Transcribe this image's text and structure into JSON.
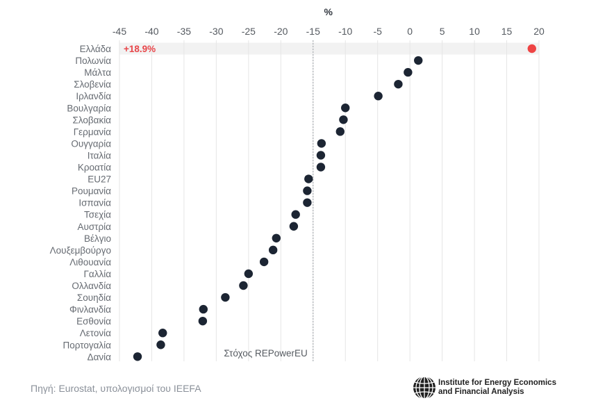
{
  "chart_data": {
    "type": "scatter",
    "unit_label": "%",
    "xlim": [
      -45,
      20
    ],
    "xticks": [
      -45,
      -40,
      -35,
      -30,
      -25,
      -20,
      -15,
      -10,
      -5,
      0,
      5,
      10,
      15,
      20
    ],
    "target": {
      "value": -15,
      "label": "Στόχος REPowerEU"
    },
    "highlight": {
      "category": "Ελλάδα",
      "label": "+18.9%",
      "color": "#ee4444"
    },
    "point_color": "#1c2533",
    "categories": [
      "Ελλάδα",
      "Πολωνία",
      "Μάλτα",
      "Σλοβενία",
      "Ιρλανδία",
      "Βουλγαρία",
      "Σλοβακία",
      "Γερμανία",
      "Ουγγαρία",
      "Ιταλία",
      "Κροατία",
      "EU27",
      "Ρουμανία",
      "Ισπανία",
      "Τσεχία",
      "Αυστρία",
      "Βέλγιο",
      "Λουξεμβούργο",
      "Λιθουανία",
      "Γαλλία",
      "Ολλανδία",
      "Σουηδία",
      "Φινλανδία",
      "Εσθονία",
      "Λετονία",
      "Πορτογαλία",
      "Δανία"
    ],
    "values": [
      18.9,
      1.3,
      -0.3,
      -1.8,
      -4.9,
      -10.0,
      -10.3,
      -10.8,
      -13.7,
      -13.8,
      -13.8,
      -15.7,
      -15.9,
      -15.9,
      -17.7,
      -18.0,
      -20.7,
      -21.2,
      -22.6,
      -25.0,
      -25.8,
      -28.6,
      -32.0,
      -32.1,
      -38.3,
      -38.6,
      -42.2
    ]
  },
  "source": "Πηγή: Eurostat, υπολογισμοί του IEEFA",
  "logo": {
    "line1": "Institute for Energy Economics",
    "line2": "and Financial Analysis"
  }
}
